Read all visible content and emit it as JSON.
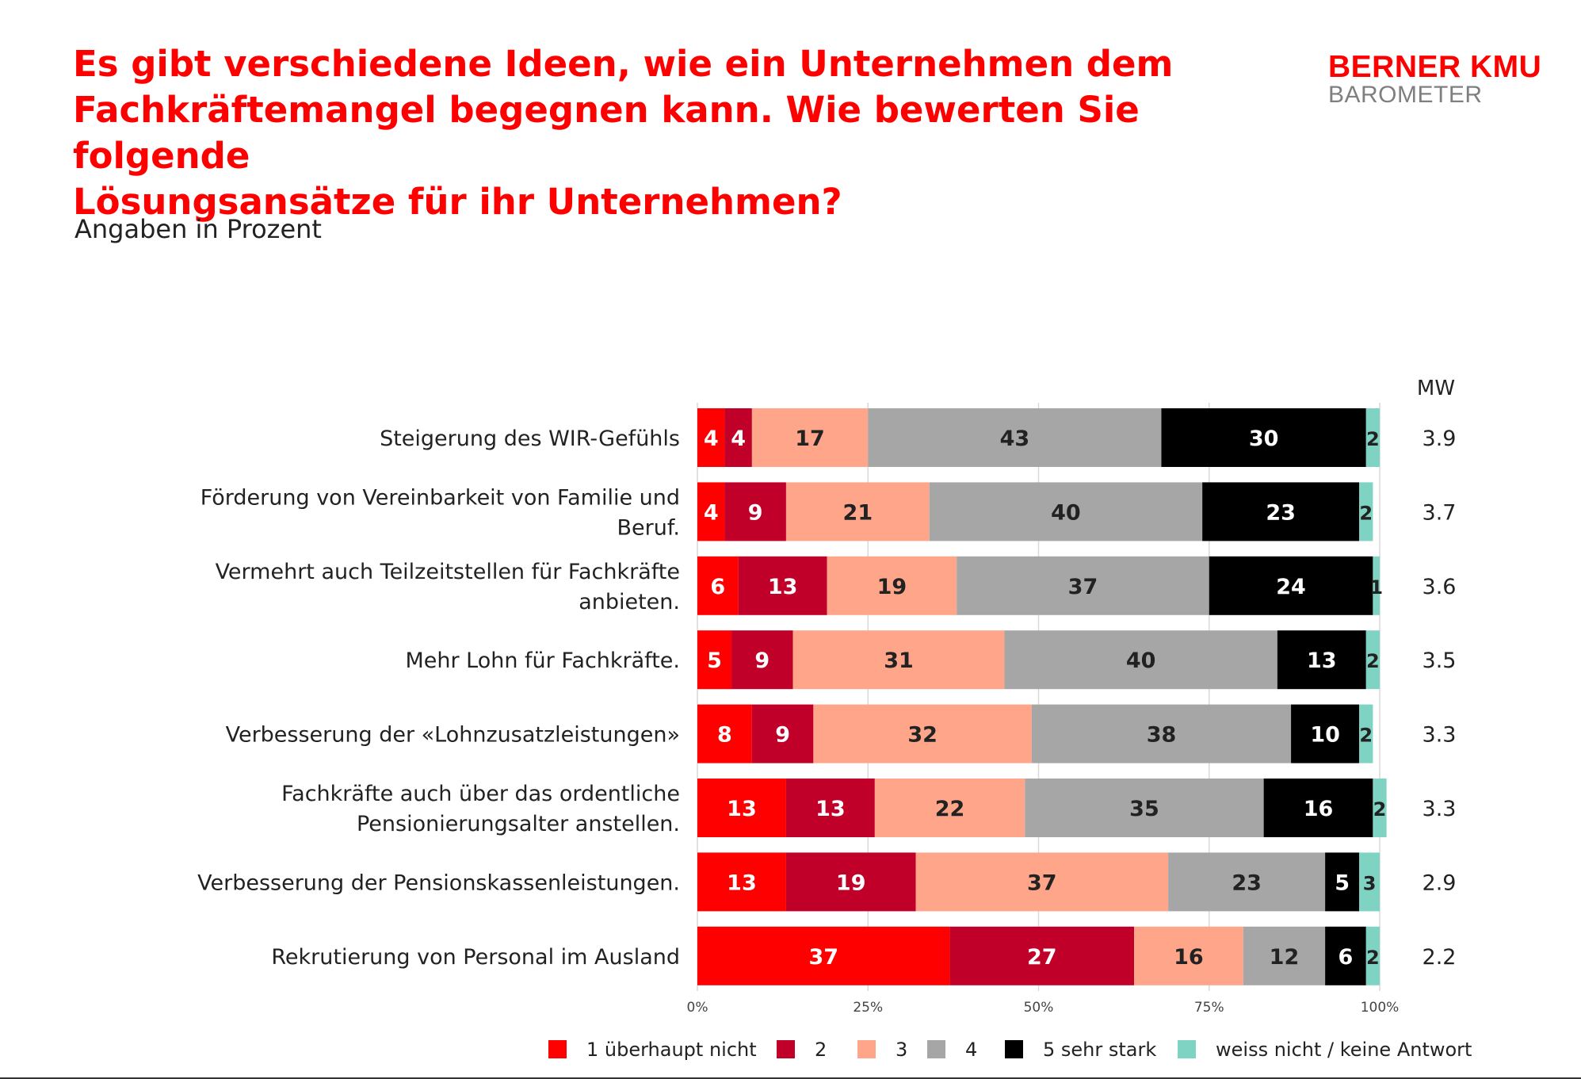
{
  "header": {
    "title_lines": [
      "Es gibt verschiedene Ideen, wie ein Unternehmen dem",
      "Fachkräftemangel begegnen kann. Wie bewerten Sie folgende",
      "Lösungsansätze für ihr Unternehmen?"
    ],
    "subtitle": "Angaben in Prozent",
    "logo_line1": "BERNER KMU",
    "logo_line2": "BAROMETER"
  },
  "colors": {
    "title": "#ff0000",
    "series": [
      "#ff0000",
      "#c00028",
      "#ffa58a",
      "#a6a6a6",
      "#000000",
      "#7fd3c3"
    ],
    "grid": "#d9d9d9"
  },
  "chart_data": {
    "type": "bar",
    "orientation": "horizontal-stacked-100",
    "title": "Es gibt verschiedene Ideen, wie ein Unternehmen dem Fachkräftemangel begegnen kann. Wie bewerten Sie folgende Lösungsansätze für ihr Unternehmen?",
    "xlabel": "",
    "ylabel": "",
    "xlim": [
      0,
      100
    ],
    "grid": true,
    "ticks": [
      "0%",
      "25%",
      "50%",
      "75%",
      "100%"
    ],
    "mw_header": "MW",
    "categories": [
      [
        "Steigerung des WIR-Gefühls"
      ],
      [
        "Förderung von Vereinbarkeit von Familie und",
        "Beruf."
      ],
      [
        "Vermehrt auch Teilzeitstellen für Fachkräfte",
        "anbieten."
      ],
      [
        "Mehr Lohn für Fachkräfte."
      ],
      [
        "Verbesserung der «Lohnzusatzleistungen»"
      ],
      [
        "Fachkräfte auch über das ordentliche",
        "Pensionierungsalter anstellen."
      ],
      [
        "Verbesserung der Pensionskassenleistungen."
      ],
      [
        "Rekrutierung von Personal im Ausland"
      ]
    ],
    "series": [
      {
        "name": "1 überhaupt nicht",
        "values": [
          4,
          4,
          6,
          5,
          8,
          13,
          13,
          37
        ]
      },
      {
        "name": "2",
        "values": [
          4,
          9,
          13,
          9,
          9,
          13,
          19,
          27
        ]
      },
      {
        "name": "3",
        "values": [
          17,
          21,
          19,
          31,
          32,
          22,
          37,
          16
        ]
      },
      {
        "name": "4",
        "values": [
          43,
          40,
          37,
          40,
          38,
          35,
          23,
          12
        ]
      },
      {
        "name": "5 sehr stark",
        "values": [
          30,
          23,
          24,
          13,
          10,
          16,
          5,
          6
        ]
      },
      {
        "name": "weiss nicht / keine Antwort",
        "values": [
          2,
          2,
          1,
          2,
          2,
          2,
          3,
          2
        ]
      }
    ],
    "mw": [
      "3.9",
      "3.7",
      "3.6",
      "3.5",
      "3.3",
      "3.3",
      "2.9",
      "2.2"
    ],
    "legend_position": "bottom"
  }
}
